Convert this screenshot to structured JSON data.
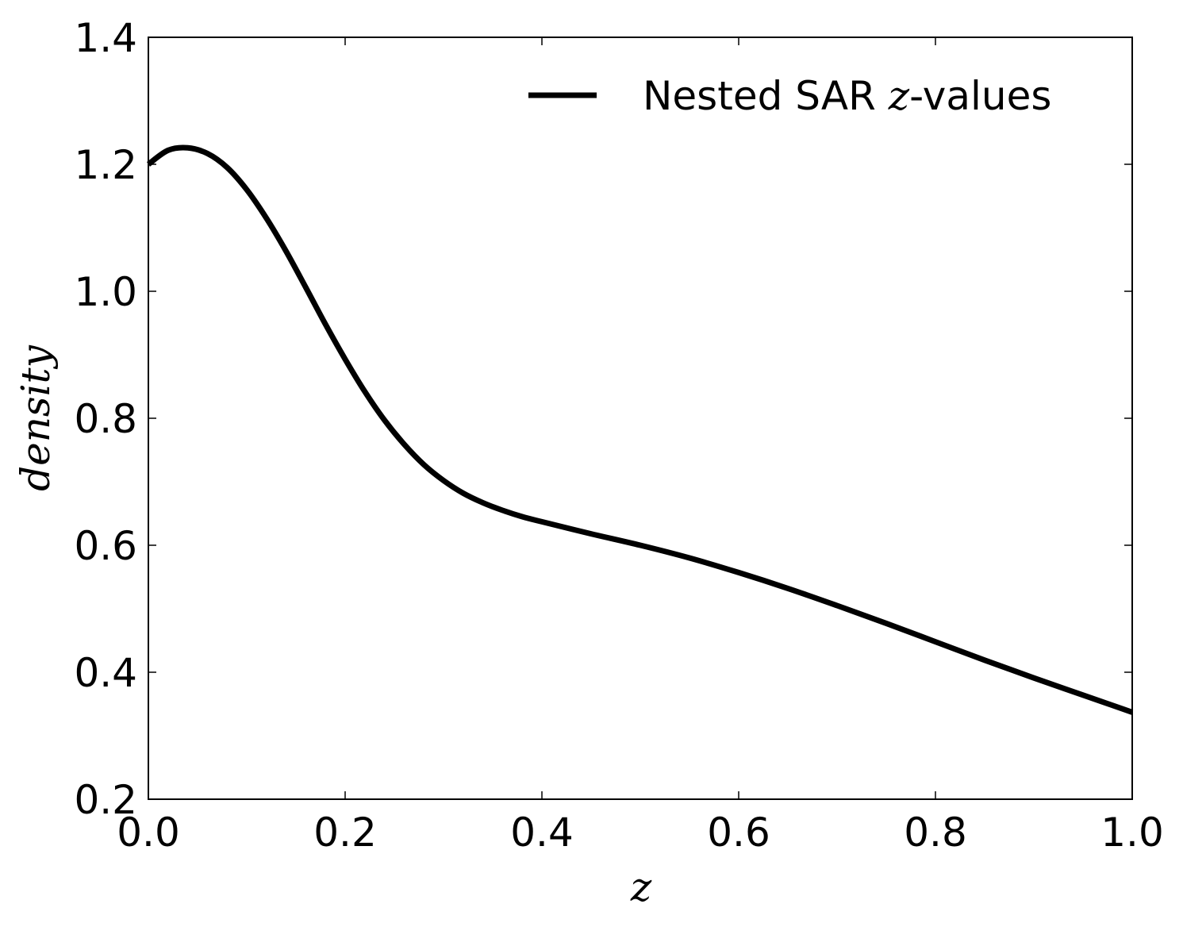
{
  "chart_data": {
    "type": "line",
    "title": "",
    "xlabel": "z",
    "ylabel": "density",
    "xlim": [
      0.0,
      1.0
    ],
    "ylim": [
      0.2,
      1.4
    ],
    "xticks": [
      "0.0",
      "0.2",
      "0.4",
      "0.6",
      "0.8",
      "1.0"
    ],
    "yticks": [
      "0.2",
      "0.4",
      "0.6",
      "0.8",
      "1.0",
      "1.2",
      "1.4"
    ],
    "grid": false,
    "legend_position": "top-right",
    "series": [
      {
        "name": "Nested SAR z-values",
        "legend_prefix": "Nested SAR ",
        "legend_var": "z",
        "legend_suffix": "-values",
        "color": "#000000",
        "x": [
          0.0,
          0.02,
          0.04,
          0.06,
          0.08,
          0.1,
          0.12,
          0.14,
          0.16,
          0.18,
          0.2,
          0.22,
          0.24,
          0.26,
          0.28,
          0.3,
          0.32,
          0.34,
          0.36,
          0.38,
          0.4,
          0.45,
          0.5,
          0.55,
          0.6,
          0.65,
          0.7,
          0.75,
          0.8,
          0.85,
          0.9,
          0.95,
          1.0
        ],
        "y": [
          1.2,
          1.222,
          1.226,
          1.217,
          1.195,
          1.16,
          1.115,
          1.063,
          1.006,
          0.948,
          0.893,
          0.842,
          0.797,
          0.759,
          0.727,
          0.702,
          0.682,
          0.667,
          0.655,
          0.645,
          0.637,
          0.618,
          0.6,
          0.58,
          0.557,
          0.532,
          0.505,
          0.477,
          0.448,
          0.419,
          0.391,
          0.364,
          0.337
        ]
      }
    ]
  }
}
